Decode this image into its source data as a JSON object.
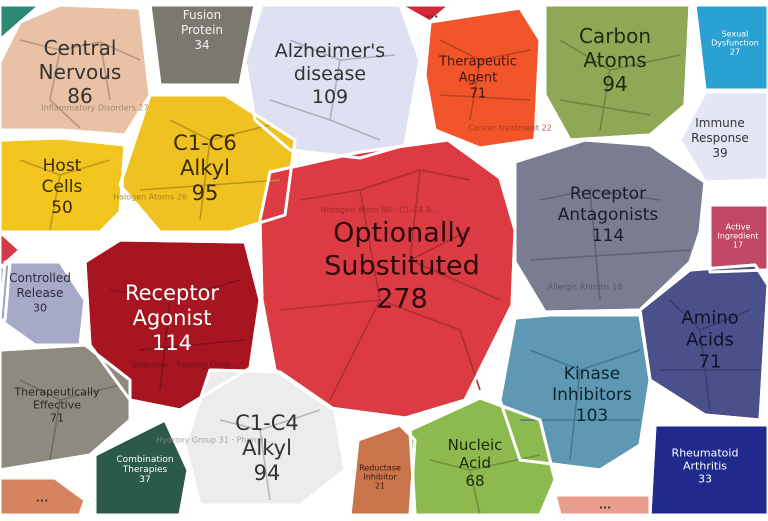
{
  "cells": [
    {
      "label": [
        "Central",
        "Nervous"
      ],
      "count": "86",
      "color": "#e9c1a4",
      "text": "#333333",
      "ghost": "Inflammatory Disorders 27"
    },
    {
      "label": [
        "Fusion",
        "Protein"
      ],
      "count": "34",
      "color": "#7b7870",
      "text": "#f2f2f2"
    },
    {
      "label": [
        "Alzheimer's",
        "disease"
      ],
      "count": "109",
      "color": "#dde1f2",
      "text": "#333333"
    },
    {
      "label": [
        "..."
      ],
      "count": "",
      "color": "#d6263c",
      "text": "#333333"
    },
    {
      "label": [
        "Therapeutic",
        "Agent"
      ],
      "count": "71",
      "color": "#f2552a",
      "text": "#3a1a10",
      "ghost": "Cancer treatment 22"
    },
    {
      "label": [
        "Carbon",
        "Atoms"
      ],
      "count": "94",
      "color": "#90a855",
      "text": "#1e2a10"
    },
    {
      "label": [
        "Sexual",
        "Dysfunction"
      ],
      "count": "27",
      "color": "#2aa1d3",
      "text": "#ffffff"
    },
    {
      "label": [
        "C1-C6",
        "Alkyl"
      ],
      "count": "95",
      "color": "#efc221",
      "text": "#3a2a00",
      "ghost": "Halogen Atoms 26"
    },
    {
      "label": [
        "Immune",
        "Response"
      ],
      "count": "39",
      "color": "#e4e6f5",
      "text": "#333333"
    },
    {
      "label": [
        "Host",
        "Cells"
      ],
      "count": "50",
      "color": "#f3c51f",
      "text": "#3a2a00"
    },
    {
      "label": [
        "Optionally",
        "Substituted"
      ],
      "count": "278",
      "color": "#dd3b44",
      "text": "#2a0a0a",
      "ghost": "Nitrogen Atom 80 · C1-C4 Alkoxy 50 · Heterocyclic Ring 68 · C1-C6 Alkoxy 60 · Membered Heterocyl 44"
    },
    {
      "label": [
        "Receptor",
        "Antagonists"
      ],
      "count": "114",
      "color": "#7a7d92",
      "text": "#1c1c28",
      "ghost": "Allergic Rhinitis 18"
    },
    {
      "label": [
        "Active",
        "Ingredient"
      ],
      "count": "17",
      "color": "#c04866",
      "text": "#ffffff"
    },
    {
      "label": [
        "Controlled",
        "Release"
      ],
      "count": "30",
      "color": "#a7a9c8",
      "text": "#2a2a3a"
    },
    {
      "label": [
        "Receptor",
        "Agonist"
      ],
      "count": "114",
      "color": "#a71520",
      "text": "#ffffff",
      "ghost": "Selective · Treating Disorders 22 · Agonist Activity 18"
    },
    {
      "label": [
        "Amino",
        "Acids"
      ],
      "count": "71",
      "color": "#4a508a",
      "text": "#10122a"
    },
    {
      "label": [
        "Therapeutically",
        "Effective"
      ],
      "count": "71",
      "color": "#8e8a80",
      "text": "#2a2822"
    },
    {
      "label": [
        "Kinase",
        "Inhibitors"
      ],
      "count": "103",
      "color": "#5f98b3",
      "text": "#0e2230"
    },
    {
      "label": [
        "C1-C4",
        "Alkyl"
      ],
      "count": "94",
      "color": "#ececec",
      "text": "#333333",
      "ghost": "Hydroxy Group 31 · Phenyl Ring 30"
    },
    {
      "label": [
        "Combination",
        "Therapies"
      ],
      "count": "37",
      "color": "#2b5a4a",
      "text": "#ffffff"
    },
    {
      "label": [
        "Reductase",
        "Inhibitor"
      ],
      "count": "21",
      "color": "#c9744a",
      "text": "#3a1a10"
    },
    {
      "label": [
        "Nucleic",
        "Acid"
      ],
      "count": "68",
      "color": "#8dba4e",
      "text": "#1c2a0a"
    },
    {
      "label": [
        "Rheumatoid",
        "Arthritis"
      ],
      "count": "33",
      "color": "#1f2a8c",
      "text": "#ffffff"
    },
    {
      "label": [
        "..."
      ],
      "count": "",
      "color": "#d6845f",
      "text": "#333333"
    },
    {
      "label": [
        "..."
      ],
      "count": "",
      "color": "#e89d8d",
      "text": "#333333"
    },
    {
      "label": [
        ""
      ],
      "count": "",
      "color": "#d23a45",
      "text": "#ffffff"
    },
    {
      "label": [
        ""
      ],
      "count": "",
      "color": "#2a8a74",
      "text": "#ffffff"
    },
    {
      "label": [
        ""
      ],
      "count": "",
      "color": "#9aa0b8",
      "text": "#ffffff"
    }
  ]
}
